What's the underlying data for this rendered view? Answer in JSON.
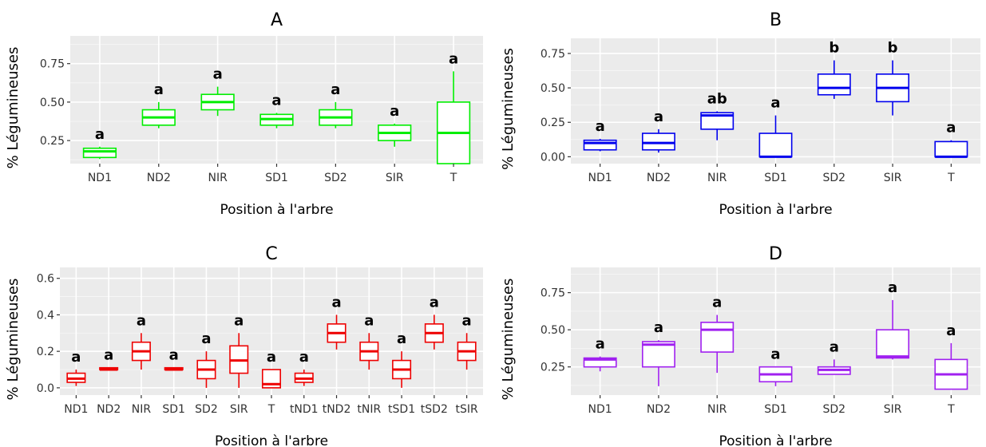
{
  "chart_data": [
    {
      "type": "boxplot",
      "title": "A",
      "xlabel": "Position à l'arbre",
      "ylabel": "% Légumineuses",
      "color": "#00ee00",
      "ylim": [
        0.1,
        0.93
      ],
      "yticks": [
        0.25,
        0.5,
        0.75
      ],
      "ytick_labels": [
        "0.25",
        "0.50",
        "0.75"
      ],
      "categories": [
        "ND1",
        "ND2",
        "NIR",
        "SD1",
        "SD2",
        "SIR",
        "T"
      ],
      "boxes": [
        {
          "min": 0.13,
          "q1": 0.14,
          "median": 0.18,
          "q3": 0.2,
          "max": 0.21
        },
        {
          "min": 0.33,
          "q1": 0.35,
          "median": 0.4,
          "q3": 0.45,
          "max": 0.5
        },
        {
          "min": 0.41,
          "q1": 0.45,
          "median": 0.5,
          "q3": 0.55,
          "max": 0.6
        },
        {
          "min": 0.33,
          "q1": 0.35,
          "median": 0.39,
          "q3": 0.42,
          "max": 0.43
        },
        {
          "min": 0.33,
          "q1": 0.35,
          "median": 0.4,
          "q3": 0.45,
          "max": 0.5
        },
        {
          "min": 0.21,
          "q1": 0.25,
          "median": 0.3,
          "q3": 0.35,
          "max": 0.36
        },
        {
          "min": 0.1,
          "q1": 0.1,
          "median": 0.3,
          "q3": 0.5,
          "max": 0.7
        }
      ],
      "group_labels": [
        "a",
        "a",
        "a",
        "a",
        "a",
        "a",
        "a"
      ]
    },
    {
      "type": "boxplot",
      "title": "B",
      "xlabel": "Position à l'arbre",
      "ylabel": "% Légumineuses",
      "color": "#0000ee",
      "ylim": [
        -0.05,
        0.86
      ],
      "yticks": [
        0,
        0.25,
        0.5,
        0.75
      ],
      "ytick_labels": [
        "0.00",
        "0.25",
        "0.50",
        "0.75"
      ],
      "categories": [
        "ND1",
        "ND2",
        "NIR",
        "SD1",
        "SD2",
        "SIR",
        "T"
      ],
      "boxes": [
        {
          "min": 0.04,
          "q1": 0.05,
          "median": 0.1,
          "q3": 0.12,
          "max": 0.13
        },
        {
          "min": 0.03,
          "q1": 0.05,
          "median": 0.1,
          "q3": 0.17,
          "max": 0.2
        },
        {
          "min": 0.12,
          "q1": 0.2,
          "median": 0.3,
          "q3": 0.32,
          "max": 0.33
        },
        {
          "min": 0.0,
          "q1": 0.0,
          "median": 0.0,
          "q3": 0.17,
          "max": 0.3
        },
        {
          "min": 0.42,
          "q1": 0.45,
          "median": 0.5,
          "q3": 0.6,
          "max": 0.7
        },
        {
          "min": 0.3,
          "q1": 0.4,
          "median": 0.5,
          "q3": 0.6,
          "max": 0.7
        },
        {
          "min": 0.0,
          "q1": 0.0,
          "median": 0.0,
          "q3": 0.11,
          "max": 0.12
        }
      ],
      "group_labels": [
        "a",
        "a",
        "ab",
        "a",
        "b",
        "b",
        "a"
      ]
    },
    {
      "type": "boxplot",
      "title": "C",
      "xlabel": "Position à l'arbre",
      "ylabel": "% Légumineuses",
      "color": "#ee0000",
      "ylim": [
        -0.04,
        0.66
      ],
      "yticks": [
        0,
        0.2,
        0.4,
        0.6
      ],
      "ytick_labels": [
        "0.0",
        "0.2",
        "0.4",
        "0.6"
      ],
      "categories": [
        "ND1",
        "ND2",
        "NIR",
        "SD1",
        "SD2",
        "SIR",
        "T",
        "tND1",
        "tND2",
        "tNIR",
        "tSD1",
        "tSD2",
        "tSIR"
      ],
      "boxes": [
        {
          "min": 0.01,
          "q1": 0.03,
          "median": 0.05,
          "q3": 0.08,
          "max": 0.1
        },
        {
          "min": 0.1,
          "q1": 0.1,
          "median": 0.1,
          "q3": 0.11,
          "max": 0.11
        },
        {
          "min": 0.1,
          "q1": 0.15,
          "median": 0.2,
          "q3": 0.25,
          "max": 0.3
        },
        {
          "min": 0.1,
          "q1": 0.1,
          "median": 0.1,
          "q3": 0.11,
          "max": 0.11
        },
        {
          "min": 0.0,
          "q1": 0.05,
          "median": 0.1,
          "q3": 0.15,
          "max": 0.2
        },
        {
          "min": 0.0,
          "q1": 0.08,
          "median": 0.15,
          "q3": 0.23,
          "max": 0.3
        },
        {
          "min": 0.0,
          "q1": 0.0,
          "median": 0.02,
          "q3": 0.1,
          "max": 0.1
        },
        {
          "min": 0.01,
          "q1": 0.03,
          "median": 0.05,
          "q3": 0.08,
          "max": 0.1
        },
        {
          "min": 0.21,
          "q1": 0.25,
          "median": 0.3,
          "q3": 0.35,
          "max": 0.4
        },
        {
          "min": 0.1,
          "q1": 0.15,
          "median": 0.2,
          "q3": 0.25,
          "max": 0.3
        },
        {
          "min": 0.0,
          "q1": 0.05,
          "median": 0.1,
          "q3": 0.15,
          "max": 0.2
        },
        {
          "min": 0.21,
          "q1": 0.25,
          "median": 0.3,
          "q3": 0.35,
          "max": 0.4
        },
        {
          "min": 0.1,
          "q1": 0.15,
          "median": 0.2,
          "q3": 0.25,
          "max": 0.3
        }
      ],
      "group_labels": [
        "a",
        "a",
        "a",
        "a",
        "a",
        "a",
        "a",
        "a",
        "a",
        "a",
        "a",
        "a",
        "a"
      ]
    },
    {
      "type": "boxplot",
      "title": "D",
      "xlabel": "Position à l'arbre",
      "ylabel": "% Légumineuses",
      "color": "#a020f0",
      "ylim": [
        0.06,
        0.92
      ],
      "yticks": [
        0.25,
        0.5,
        0.75
      ],
      "ytick_labels": [
        "0.25",
        "0.50",
        "0.75"
      ],
      "categories": [
        "ND1",
        "ND2",
        "NIR",
        "SD1",
        "SD2",
        "SIR",
        "T"
      ],
      "boxes": [
        {
          "min": 0.22,
          "q1": 0.25,
          "median": 0.3,
          "q3": 0.31,
          "max": 0.32
        },
        {
          "min": 0.12,
          "q1": 0.25,
          "median": 0.4,
          "q3": 0.42,
          "max": 0.43
        },
        {
          "min": 0.21,
          "q1": 0.35,
          "median": 0.5,
          "q3": 0.55,
          "max": 0.6
        },
        {
          "min": 0.12,
          "q1": 0.15,
          "median": 0.2,
          "q3": 0.25,
          "max": 0.25
        },
        {
          "min": 0.2,
          "q1": 0.2,
          "median": 0.23,
          "q3": 0.25,
          "max": 0.3
        },
        {
          "min": 0.3,
          "q1": 0.31,
          "median": 0.32,
          "q3": 0.5,
          "max": 0.7
        },
        {
          "min": 0.1,
          "q1": 0.1,
          "median": 0.2,
          "q3": 0.3,
          "max": 0.41
        }
      ],
      "group_labels": [
        "a",
        "a",
        "a",
        "a",
        "a",
        "a",
        "a"
      ]
    }
  ]
}
